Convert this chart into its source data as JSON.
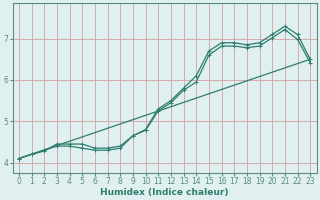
{
  "xlabel": "Humidex (Indice chaleur)",
  "bg_color": "#e0f0f0",
  "grid_color": "#d4a0a0",
  "line_color": "#2e7d6e",
  "spine_color": "#5a8a80",
  "xlim": [
    -0.5,
    23.5
  ],
  "ylim": [
    3.75,
    7.85
  ],
  "xticks": [
    0,
    1,
    2,
    3,
    4,
    5,
    6,
    7,
    8,
    9,
    10,
    11,
    12,
    13,
    14,
    15,
    16,
    17,
    18,
    19,
    20,
    21,
    22,
    23
  ],
  "yticks": [
    4,
    5,
    6,
    7
  ],
  "series1_x": [
    0,
    1,
    2,
    3,
    4,
    5,
    6,
    7,
    8,
    9,
    10,
    11,
    12,
    13,
    14,
    15,
    16,
    17,
    18,
    19,
    20,
    21,
    22,
    23
  ],
  "series1_y": [
    4.1,
    4.2,
    4.3,
    4.4,
    4.4,
    4.35,
    4.3,
    4.3,
    4.35,
    4.65,
    4.8,
    5.3,
    5.5,
    5.8,
    6.1,
    6.7,
    6.9,
    6.9,
    6.85,
    6.9,
    7.1,
    7.3,
    7.1,
    6.5
  ],
  "series2_x": [
    0,
    1,
    2,
    3,
    4,
    5,
    6,
    7,
    8,
    9,
    10,
    11,
    12,
    13,
    14,
    15,
    16,
    17,
    18,
    19,
    20,
    21,
    22,
    23
  ],
  "series2_y": [
    4.1,
    4.2,
    4.28,
    4.45,
    4.45,
    4.45,
    4.35,
    4.35,
    4.4,
    4.65,
    4.78,
    5.25,
    5.45,
    5.75,
    5.95,
    6.6,
    6.82,
    6.82,
    6.78,
    6.82,
    7.02,
    7.22,
    6.98,
    6.42
  ],
  "series3_x": [
    0,
    23
  ],
  "series3_y": [
    4.1,
    6.5
  ]
}
